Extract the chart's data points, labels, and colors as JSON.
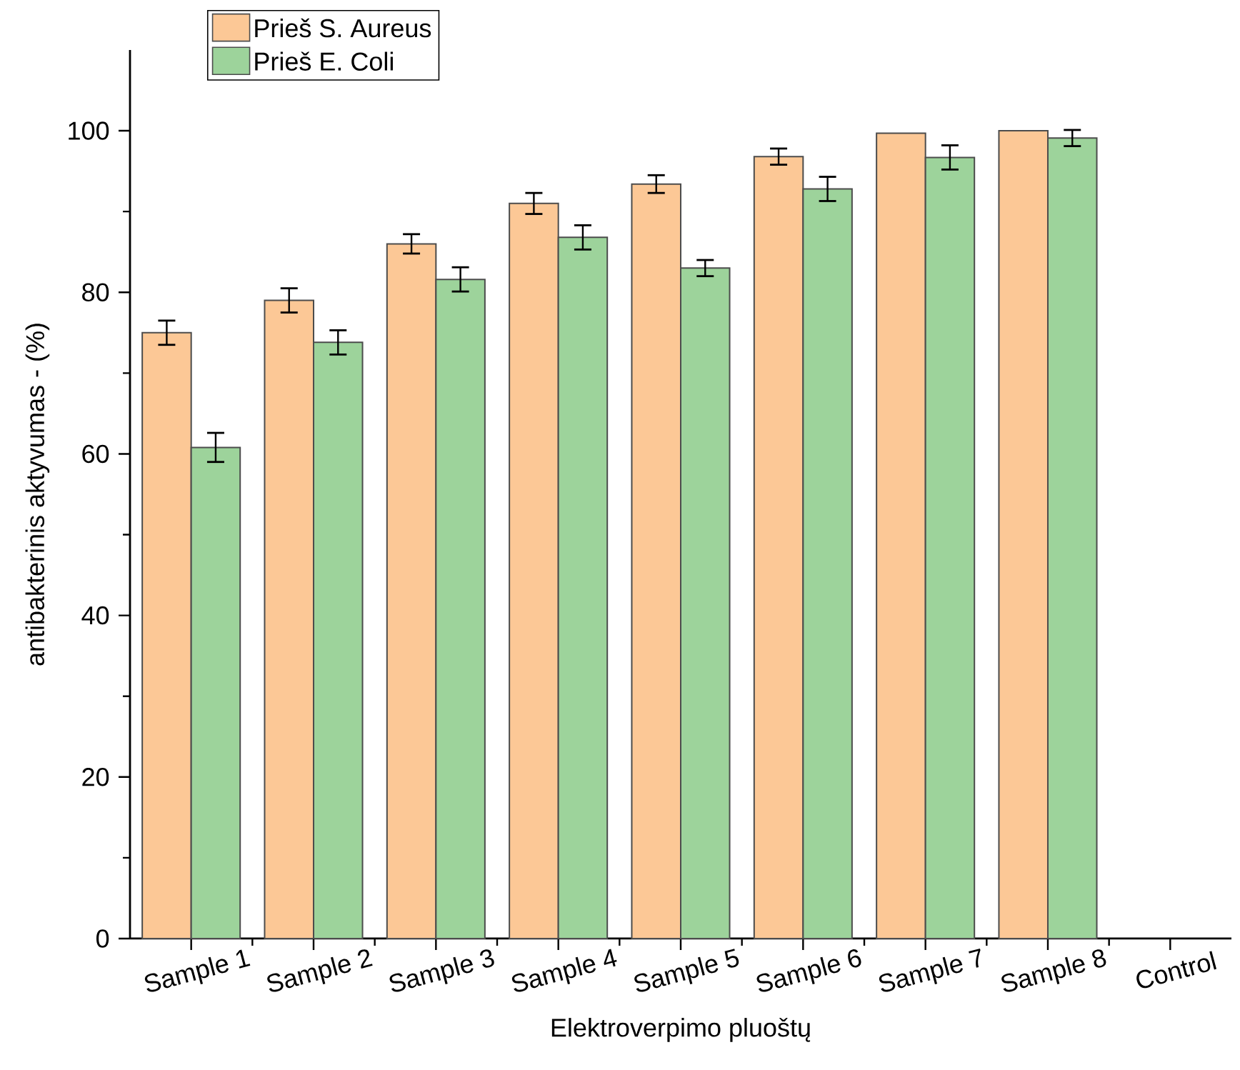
{
  "chart_data": {
    "type": "bar",
    "xlabel": "Elektroverpimo pluoštų",
    "ylabel": "antibakterinis aktyvumas - (%)",
    "categories": [
      "Sample 1",
      "Sample 2",
      "Sample 3",
      "Sample 4",
      "Sample 5",
      "Sample 6",
      "Sample 7",
      "Sample 8",
      "Control"
    ],
    "series": [
      {
        "name": "Prieš S. Aureus",
        "color": "#fcc896",
        "values": [
          75.0,
          79.0,
          86.0,
          91.0,
          93.4,
          96.8,
          99.7,
          100.0,
          null
        ],
        "errors": [
          1.5,
          1.5,
          1.2,
          1.3,
          1.1,
          1.0,
          null,
          null,
          null
        ]
      },
      {
        "name": "Prieš E. Coli",
        "color": "#9dd39b",
        "values": [
          60.8,
          73.8,
          81.6,
          86.8,
          83.0,
          92.8,
          96.7,
          99.1,
          null
        ],
        "errors": [
          1.8,
          1.5,
          1.5,
          1.5,
          1.0,
          1.5,
          1.5,
          1.0,
          null
        ]
      }
    ],
    "ylim": [
      0,
      110
    ],
    "yticks": [
      0,
      20,
      40,
      60,
      80,
      100
    ],
    "legend": "top left",
    "grid": false
  }
}
